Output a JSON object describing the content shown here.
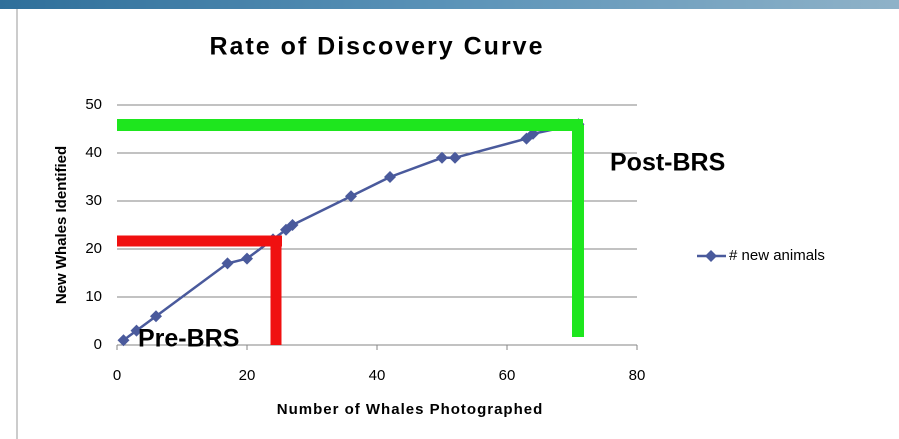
{
  "chart_data": {
    "type": "line",
    "title": "Rate of Discovery Curve",
    "xlabel": "Number of Whales Photographed",
    "ylabel": "New Whales Identified",
    "series": [
      {
        "name": "# new animals",
        "color": "#4a5a9c",
        "x": [
          1,
          3,
          6,
          17,
          20,
          24,
          26,
          27,
          36,
          42,
          50,
          52,
          63,
          64,
          71
        ],
        "values": [
          1,
          3,
          6,
          17,
          18,
          22,
          24,
          25,
          31,
          35,
          39,
          39,
          43,
          44,
          46
        ]
      }
    ],
    "xlim": [
      0,
      80
    ],
    "xticks": [
      0,
      20,
      40,
      60,
      80
    ],
    "ylim": [
      0,
      50
    ],
    "yticks": [
      0,
      10,
      20,
      30,
      40,
      50
    ],
    "grid": true,
    "legend": "right",
    "annotations": [
      "Post-BRS",
      "Pre-BRS"
    ]
  }
}
